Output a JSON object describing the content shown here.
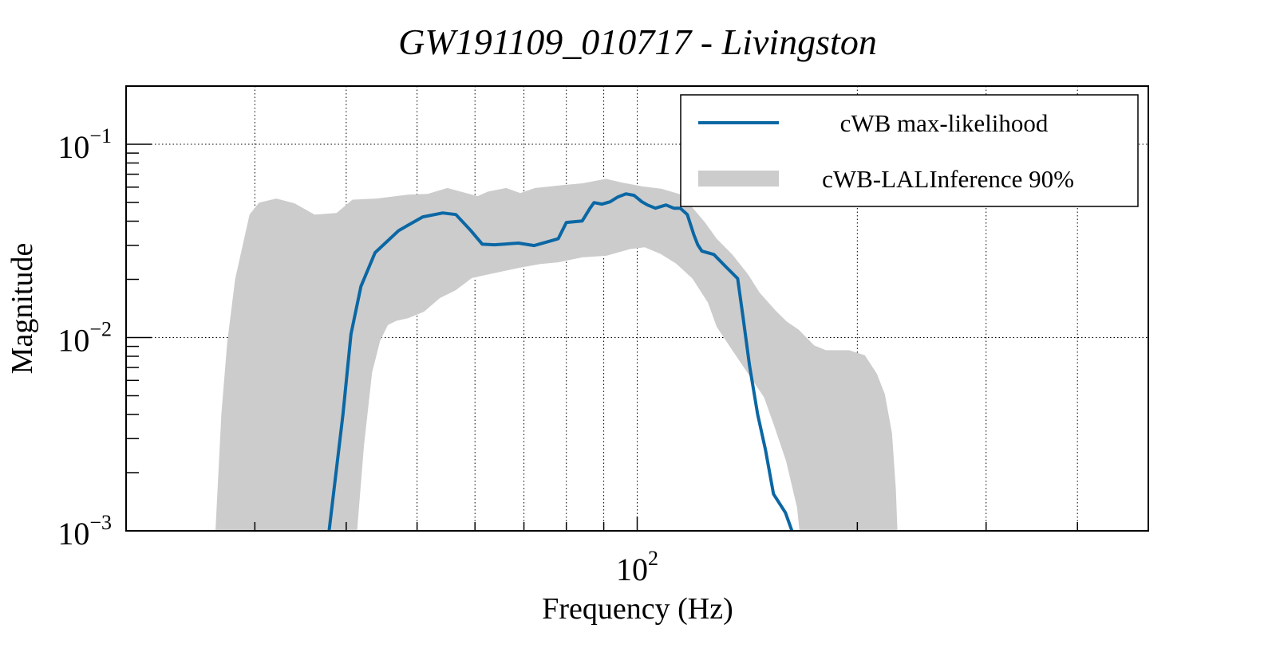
{
  "chart_data": {
    "type": "area",
    "title": "GW191109_010717 - Livingston",
    "xlabel": "Frequency (Hz)",
    "ylabel": "Magnitude",
    "xscale": "log",
    "yscale": "log",
    "xlim": [
      20,
      500
    ],
    "ylim": [
      0.001,
      0.2
    ],
    "x_major_ticks": [
      {
        "value": 100,
        "base": "10",
        "exp": "2"
      }
    ],
    "x_gridlines": [
      30,
      40,
      50,
      60,
      70,
      80,
      90,
      100,
      200,
      300,
      400
    ],
    "y_major_ticks": [
      {
        "value": 0.1,
        "base": "10",
        "exp": "−1"
      },
      {
        "value": 0.01,
        "base": "10",
        "exp": "−2"
      },
      {
        "value": 0.001,
        "base": "10",
        "exp": "−3"
      }
    ],
    "grid": true,
    "legend": {
      "position": "top-right",
      "entries": [
        {
          "label": "cWB max-likelihood",
          "kind": "line",
          "color": "#0b67a4"
        },
        {
          "label": "cWB-LALInference 90%",
          "kind": "band",
          "color": "#cccccc"
        }
      ]
    },
    "series": [
      {
        "name": "cWB max-likelihood",
        "kind": "line",
        "color": "#0b67a4",
        "x": [
          37.9,
          39.6,
          40.6,
          41.9,
          43.8,
          47.2,
          50.9,
          54.2,
          56.5,
          59.2,
          61.4,
          63.8,
          68.8,
          72.3,
          76.1,
          78.0,
          79.0,
          80.0,
          84.1,
          86.2,
          87.3,
          89.5,
          91.8,
          94.1,
          96.5,
          99.0,
          101.5,
          103.3,
          105.9,
          109.5,
          112.2,
          114.5,
          117.1,
          119.5,
          121.0,
          122.6,
          127.3,
          132.1,
          137.2,
          139.6,
          142.5,
          146.1,
          149.8,
          153.6,
          159.5,
          162.8
        ],
        "y": [
          0.001,
          0.00401,
          0.0104,
          0.0184,
          0.0275,
          0.0358,
          0.0421,
          0.0441,
          0.0433,
          0.0358,
          0.0304,
          0.0302,
          0.0308,
          0.0299,
          0.0316,
          0.0325,
          0.0358,
          0.0394,
          0.0401,
          0.0467,
          0.0499,
          0.049,
          0.0504,
          0.0534,
          0.0554,
          0.0544,
          0.0504,
          0.0485,
          0.0467,
          0.0485,
          0.0467,
          0.0467,
          0.0433,
          0.0341,
          0.0302,
          0.028,
          0.0269,
          0.0233,
          0.0202,
          0.0126,
          0.0071,
          0.00401,
          0.00262,
          0.00155,
          0.00124,
          0.001
        ]
      },
      {
        "name": "cWB-LALInference 90%",
        "kind": "band",
        "color": "#cccccc",
        "upper": {
          "x": [
            26.5,
            27.0,
            27.5,
            28.2,
            29.5,
            30.4,
            32.1,
            34.0,
            36.2,
            38.8,
            40.8,
            44.0,
            48.6,
            51.7,
            55.0,
            60.5,
            62.5,
            66.2,
            69.2,
            72.5,
            77.9,
            84.1,
            90.7,
            95.3,
            101.5,
            108.0,
            114.9,
            119.2,
            123.8,
            128.4,
            134.9,
            141.8,
            147.0,
            154.3,
            160.1,
            166.2,
            174.6,
            181.1,
            194.8,
            204.8,
            212.7,
            218.1,
            223.1,
            225.8,
            226.9
          ],
          "y": [
            0.001,
            0.00401,
            0.0094,
            0.0201,
            0.0433,
            0.0499,
            0.0524,
            0.0495,
            0.0433,
            0.0441,
            0.0517,
            0.0524,
            0.0549,
            0.0554,
            0.0594,
            0.0539,
            0.0569,
            0.0594,
            0.0559,
            0.0594,
            0.0611,
            0.0628,
            0.0662,
            0.0634,
            0.0606,
            0.0588,
            0.0549,
            0.0467,
            0.0394,
            0.0325,
            0.0269,
            0.0212,
            0.0171,
            0.0139,
            0.0121,
            0.011,
            0.0091,
            0.0086,
            0.0086,
            0.0081,
            0.0065,
            0.0051,
            0.0032,
            0.00165,
            0.001
          ]
        },
        "lower": {
          "x": [
            26.5,
            41.4,
            42.3,
            43.4,
            44.5,
            45.6,
            46.8,
            48.6,
            51.1,
            53.7,
            56.5,
            59.4,
            62.5,
            65.8,
            69.2,
            73.7,
            78.0,
            84.1,
            90.7,
            97.8,
            102.4,
            107.6,
            113.1,
            119.0,
            124.9,
            128.4,
            134.9,
            141.8,
            149.1,
            154.3,
            159.8,
            165.4,
            166.7
          ],
          "y": [
            0.001,
            0.001,
            0.00276,
            0.0066,
            0.0096,
            0.0116,
            0.0122,
            0.0126,
            0.0136,
            0.016,
            0.0176,
            0.0203,
            0.0212,
            0.0221,
            0.023,
            0.024,
            0.0245,
            0.026,
            0.0265,
            0.0287,
            0.0293,
            0.0271,
            0.0241,
            0.0202,
            0.0152,
            0.0114,
            0.0086,
            0.0065,
            0.0049,
            0.0034,
            0.0023,
            0.00132,
            0.001
          ]
        }
      }
    ]
  }
}
